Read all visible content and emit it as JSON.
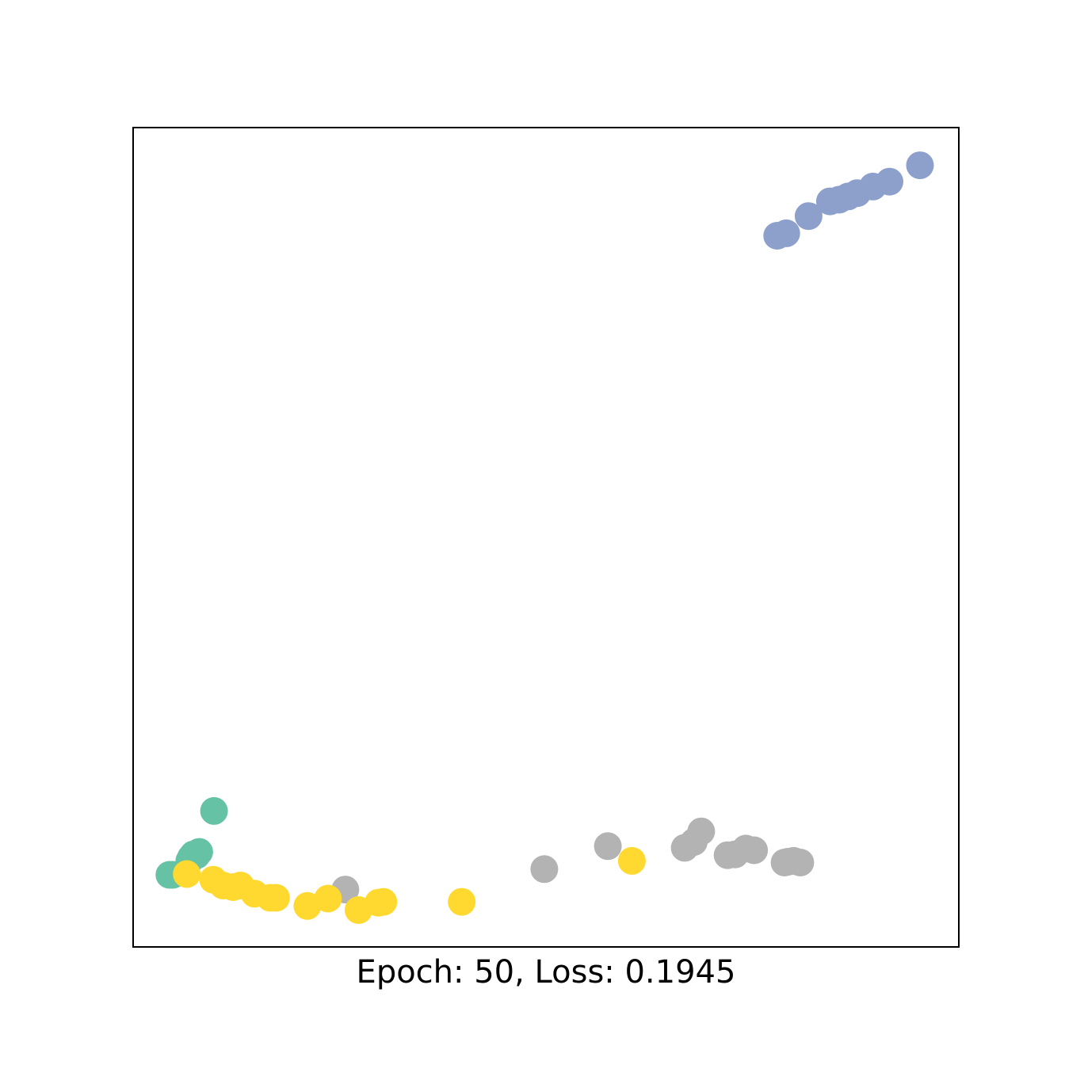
{
  "chart_data": {
    "type": "scatter",
    "title": "",
    "xlabel": "Epoch: 50, Loss: 0.1945",
    "ylabel": "",
    "xlim": [
      0,
      100
    ],
    "ylim": [
      0,
      100
    ],
    "ticks_visible": false,
    "grid": false,
    "legend": "none",
    "series": [
      {
        "color": "#66c2a5",
        "points": [
          [
            9.8,
            16.6
          ],
          [
            8.0,
            11.6
          ],
          [
            7.7,
            11.2
          ],
          [
            7.3,
            11.3
          ],
          [
            7.0,
            10.9
          ],
          [
            4.8,
            8.8
          ],
          [
            4.4,
            8.8
          ],
          [
            6.8,
            10.5
          ]
        ]
      },
      {
        "color": "#8da0cb",
        "points": [
          [
            95.3,
            95.4
          ],
          [
            91.6,
            93.4
          ],
          [
            89.6,
            92.8
          ],
          [
            87.7,
            92.0
          ],
          [
            86.6,
            91.6
          ],
          [
            85.5,
            91.2
          ],
          [
            84.4,
            91.0
          ],
          [
            81.8,
            89.2
          ],
          [
            79.1,
            87.1
          ],
          [
            78.0,
            86.8
          ]
        ]
      },
      {
        "color": "#b3b3b3",
        "points": [
          [
            25.7,
            7.0
          ],
          [
            49.8,
            9.5
          ],
          [
            57.5,
            12.3
          ],
          [
            68.8,
            14.1
          ],
          [
            67.9,
            12.8
          ],
          [
            66.8,
            12.1
          ],
          [
            74.2,
            12.0
          ],
          [
            75.2,
            11.8
          ],
          [
            72.9,
            11.3
          ],
          [
            72.0,
            11.2
          ],
          [
            80.0,
            10.5
          ],
          [
            80.8,
            10.3
          ],
          [
            79.3,
            10.4
          ],
          [
            78.9,
            10.3
          ]
        ]
      },
      {
        "color": "#ffd92f",
        "points": [
          [
            6.5,
            8.9
          ],
          [
            9.7,
            8.2
          ],
          [
            10.9,
            7.5
          ],
          [
            12.1,
            7.3
          ],
          [
            13.0,
            7.5
          ],
          [
            14.7,
            6.5
          ],
          [
            16.6,
            6.0
          ],
          [
            17.3,
            6.0
          ],
          [
            21.1,
            5.0
          ],
          [
            23.6,
            5.9
          ],
          [
            27.3,
            4.5
          ],
          [
            29.7,
            5.4
          ],
          [
            30.3,
            5.5
          ],
          [
            39.8,
            5.5
          ],
          [
            60.4,
            10.5
          ]
        ]
      }
    ]
  }
}
